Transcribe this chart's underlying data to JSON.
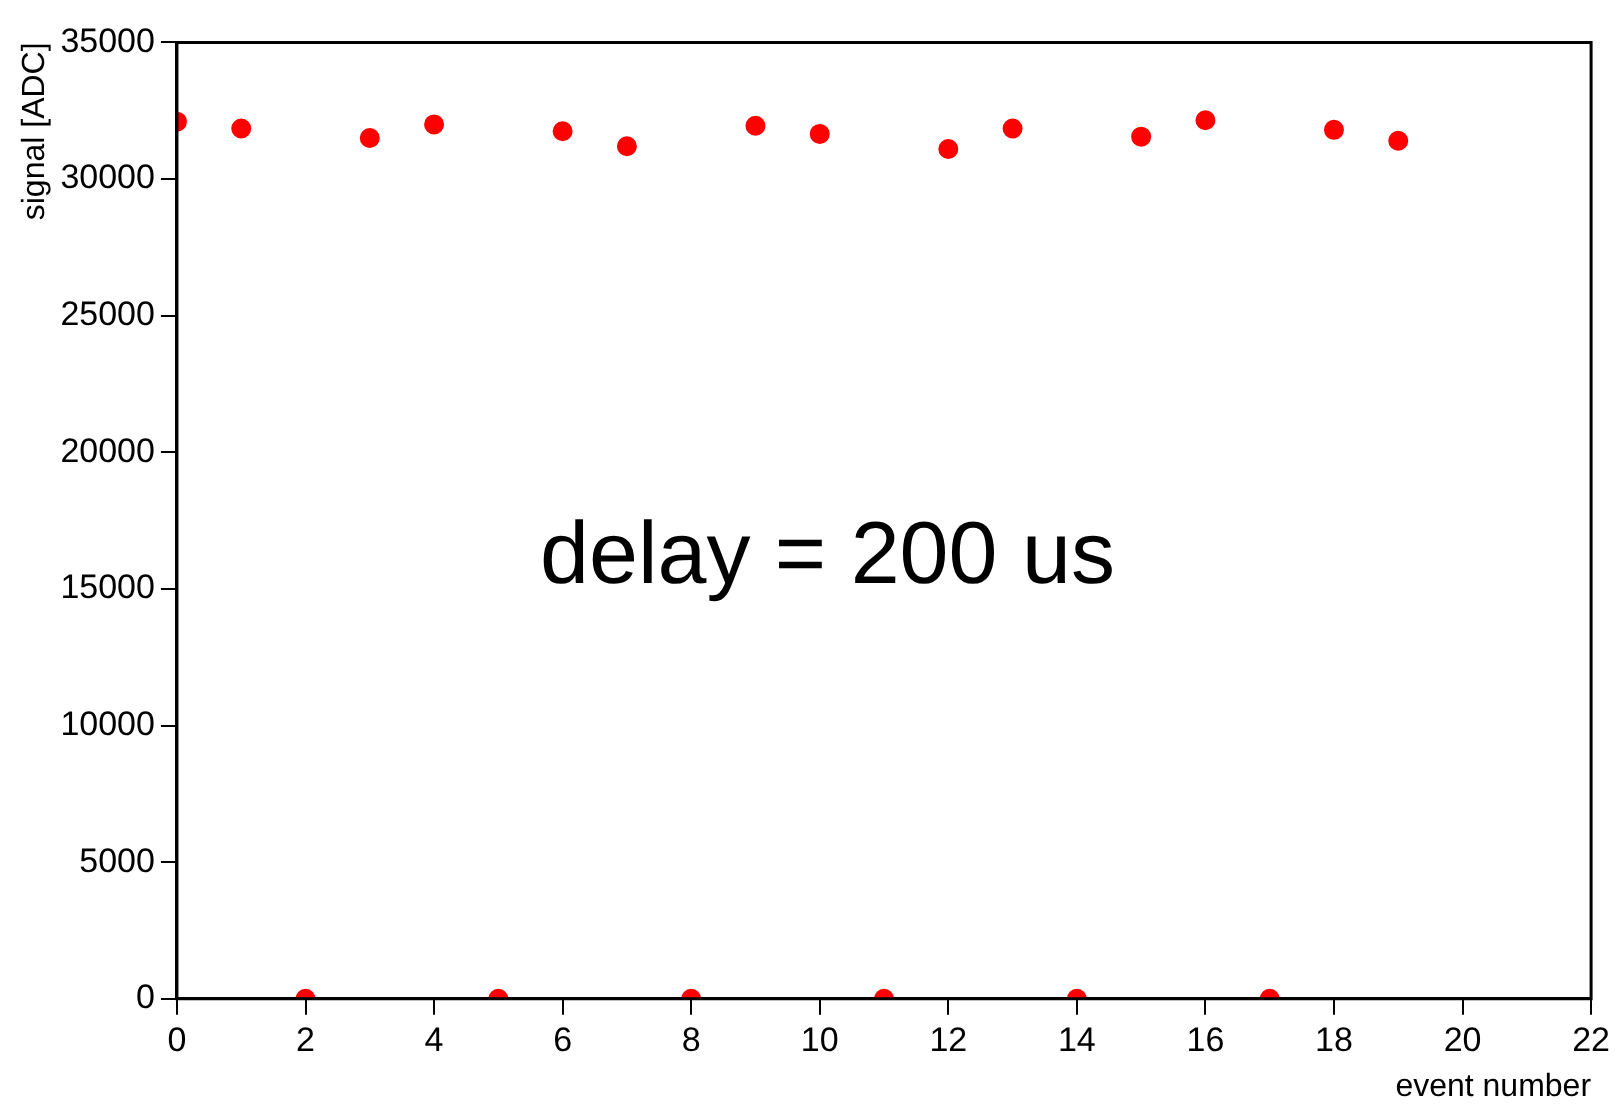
{
  "chart_data": {
    "type": "scatter",
    "xlabel": "event number",
    "ylabel": "signal [ADC]",
    "annotations": [
      "delay = 200 us"
    ],
    "x": [
      0,
      1,
      2,
      3,
      4,
      5,
      6,
      7,
      8,
      9,
      10,
      11,
      12,
      13,
      14,
      15,
      16,
      17,
      18,
      19
    ],
    "series": [
      {
        "color": "#ff0000",
        "values": [
          32100,
          31850,
          0,
          31500,
          32000,
          0,
          31750,
          31200,
          0,
          31950,
          31650,
          0,
          31100,
          31850,
          0,
          31550,
          32150,
          0,
          31800,
          31400
        ]
      }
    ],
    "xlim": [
      0,
      22
    ],
    "xticks": [
      0,
      2,
      4,
      6,
      8,
      10,
      12,
      14,
      16,
      18,
      20,
      22
    ],
    "ylim": [
      0,
      35000
    ],
    "yticks": [
      0,
      5000,
      10000,
      15000,
      20000,
      25000,
      30000,
      35000
    ],
    "marker": "circle",
    "legend": false
  }
}
